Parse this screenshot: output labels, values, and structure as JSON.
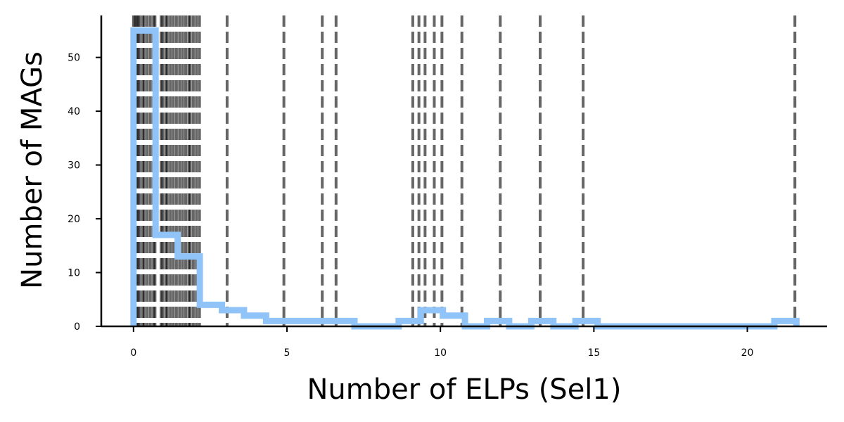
{
  "chart_data": {
    "type": "histogram",
    "xlabel": "Number of ELPs (Sel1)",
    "ylabel": "Number of MAGs",
    "xlim": [
      -1.05,
      22.6
    ],
    "ylim": [
      0,
      57.8
    ],
    "xticks": [
      0,
      5,
      10,
      15,
      20
    ],
    "yticks": [
      0,
      10,
      20,
      30,
      40,
      50
    ],
    "grid": false,
    "histogram": {
      "color": "#90c4f8",
      "style": "step",
      "bin_edges": [
        0,
        0.72,
        1.44,
        2.16,
        2.88,
        3.6,
        4.32,
        5.04,
        5.76,
        6.48,
        7.2,
        7.92,
        8.64,
        9.36,
        10.08,
        10.8,
        11.52,
        12.24,
        12.96,
        13.68,
        14.4,
        15.12,
        15.84,
        16.56,
        17.28,
        18.0,
        18.72,
        19.44,
        20.16,
        20.88,
        21.6
      ],
      "counts": [
        55,
        17,
        13,
        4,
        3,
        2,
        1,
        1,
        1,
        1,
        0,
        0,
        1,
        3,
        2,
        0,
        1,
        0,
        1,
        0,
        1,
        0,
        0,
        0,
        0,
        0,
        0,
        0,
        0,
        1
      ]
    },
    "vlines": {
      "color": "#000000",
      "style": "dashed",
      "x": [
        0,
        0.05,
        0.1,
        0.15,
        0.2,
        0.3,
        0.35,
        0.45,
        0.55,
        0.65,
        0.7,
        0.9,
        0.95,
        1.05,
        1.1,
        1.2,
        1.3,
        1.4,
        1.5,
        1.6,
        1.7,
        1.8,
        1.85,
        1.95,
        2.05,
        2.15,
        3.05,
        4.9,
        6.15,
        6.6,
        9.1,
        9.3,
        9.5,
        9.8,
        10.05,
        10.7,
        11.95,
        13.25,
        14.65,
        21.55
      ]
    }
  }
}
